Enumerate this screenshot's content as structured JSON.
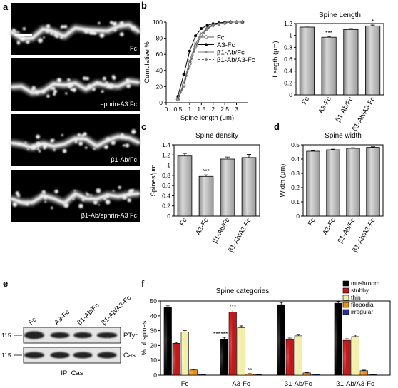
{
  "panel_labels": {
    "a": "a",
    "b": "b",
    "c": "c",
    "d": "d",
    "e": "e",
    "f": "f"
  },
  "micrographs": [
    "Fc",
    "ephrin-A3 Fc",
    "β1-Ab/Fc",
    "β1-Ab/ephrin-A3 Fc"
  ],
  "blot": {
    "lanes": [
      "Fc",
      "A3-Fc",
      "β1-Ab/Fc",
      "β1-Ab/A3-Fc"
    ],
    "rows": [
      "PTyr",
      "Cas"
    ],
    "marker": "115",
    "ip_label": "IP: Cas"
  },
  "chart_data": [
    {
      "id": "cumulative",
      "type": "line",
      "xlabel": "Spine length (μm)",
      "ylabel": "Cumulative %",
      "xlim": [
        0,
        3.5
      ],
      "ylim": [
        0,
        100
      ],
      "xticks": [
        0,
        0.5,
        1,
        1.5,
        2,
        2.5,
        3
      ],
      "yticks": [
        0,
        20,
        40,
        60,
        80,
        100
      ],
      "legend": "top-right",
      "series": [
        {
          "name": "Fc",
          "marker": "open-diamond",
          "x": [
            0.5,
            0.75,
            1,
            1.25,
            1.5,
            1.75,
            2,
            2.25,
            2.5,
            2.75,
            3,
            3.25
          ],
          "y": [
            4,
            22,
            48,
            70,
            84,
            92,
            96,
            98,
            99,
            100,
            100,
            100
          ]
        },
        {
          "name": "A3-Fc",
          "marker": "filled-circle",
          "x": [
            0.5,
            0.75,
            1,
            1.25,
            1.5,
            1.75,
            2,
            2.25,
            2.5,
            2.75,
            3,
            3.25
          ],
          "y": [
            8,
            35,
            64,
            83,
            92,
            96,
            98,
            99,
            100,
            100,
            100,
            100
          ]
        },
        {
          "name": "β1-Ab/Fc",
          "marker": "x",
          "x": [
            0.5,
            0.75,
            1,
            1.25,
            1.5,
            1.75,
            2,
            2.25,
            2.5,
            2.75,
            3,
            3.25
          ],
          "y": [
            5,
            25,
            52,
            73,
            86,
            93,
            97,
            98,
            99,
            100,
            100,
            100
          ]
        },
        {
          "name": "β1-Ab/A3-Fc",
          "marker": "dashed-star",
          "x": [
            0.5,
            0.75,
            1,
            1.25,
            1.5,
            1.75,
            2,
            2.25,
            2.5,
            2.75,
            3,
            3.25
          ],
          "y": [
            3,
            20,
            45,
            68,
            82,
            91,
            96,
            98,
            99,
            100,
            100,
            100
          ]
        }
      ]
    },
    {
      "id": "length",
      "type": "bar",
      "title": "Spine Length",
      "ylabel": "Length (μm)",
      "ylim": [
        0,
        1.2
      ],
      "yticks": [
        0,
        0.2,
        0.4,
        0.6,
        0.8,
        1,
        1.2
      ],
      "categories": [
        "Fc",
        "A3-Fc",
        "β1-Ab/Fc",
        "β1-Ab/A3-Fc"
      ],
      "values": [
        1.14,
        0.97,
        1.1,
        1.16
      ],
      "errors": [
        0.015,
        0.015,
        0.015,
        0.015
      ],
      "annotations": [
        "",
        "***",
        "",
        "*"
      ]
    },
    {
      "id": "density",
      "type": "bar",
      "title": "Spine density",
      "ylabel": "Spines/μm",
      "ylim": [
        0,
        1.4
      ],
      "yticks": [
        0,
        0.2,
        0.4,
        0.6,
        0.8,
        1,
        1.2,
        1.4
      ],
      "categories": [
        "Fc",
        "A3-Fc",
        "β1-Ab/Fc",
        "β1-Ab/A3-Fc"
      ],
      "values": [
        1.18,
        0.78,
        1.12,
        1.15
      ],
      "errors": [
        0.05,
        0.03,
        0.04,
        0.06
      ],
      "annotations": [
        "",
        "***",
        "",
        ""
      ]
    },
    {
      "id": "width",
      "type": "bar",
      "title": "Spine width",
      "ylabel": "Width (μm)",
      "ylim": [
        0,
        0.5
      ],
      "yticks": [
        0,
        0.1,
        0.2,
        0.3,
        0.4,
        0.5
      ],
      "categories": [
        "Fc",
        "A3-Fc",
        "β1-Ab/Fc",
        "β1-Ab/A3-Fc"
      ],
      "values": [
        0.455,
        0.465,
        0.475,
        0.482
      ],
      "errors": [
        0.004,
        0.004,
        0.004,
        0.004
      ],
      "annotations": [
        "",
        "",
        "",
        ""
      ]
    },
    {
      "id": "categories",
      "type": "bar",
      "title": "Spine categories",
      "ylabel": "% of spines",
      "ylim": [
        0,
        50
      ],
      "yticks": [
        0,
        10,
        20,
        30,
        40,
        50
      ],
      "categories": [
        "Fc",
        "A3-Fc",
        "β1-Ab/Fc",
        "β1-Ab/A3-Fc"
      ],
      "legend": "top-right",
      "series": [
        {
          "name": "mushroom",
          "color": "#000000",
          "values": [
            45.5,
            24,
            47.5,
            48.5
          ],
          "errors": [
            1.2,
            1.5,
            1.5,
            1.2
          ],
          "annotations": [
            "",
            "***",
            "",
            ""
          ]
        },
        {
          "name": "stubby",
          "color": "#c41818",
          "values": [
            21.5,
            42.5,
            24,
            23.5
          ],
          "errors": [
            0.6,
            1.5,
            1,
            1
          ],
          "annotations": [
            "",
            "***",
            "",
            ""
          ]
        },
        {
          "name": "thin",
          "color": "#f2efaa",
          "values": [
            29,
            32,
            26.5,
            26
          ],
          "errors": [
            1,
            1.2,
            1,
            1
          ],
          "annotations": [
            "",
            "",
            "",
            ""
          ]
        },
        {
          "name": "filopodia",
          "color": "#e8901c",
          "values": [
            3.5,
            0.8,
            1.5,
            3
          ],
          "errors": [
            0.4,
            0.2,
            0.3,
            0.4
          ],
          "annotations": [
            "",
            "**",
            "",
            ""
          ]
        },
        {
          "name": "irregular",
          "color": "#24349c",
          "values": [
            0.4,
            0.3,
            0.4,
            0.4
          ],
          "errors": [
            0.1,
            0.1,
            0.1,
            0.1
          ],
          "annotations": [
            "",
            "",
            "",
            ""
          ]
        }
      ],
      "extra_annotations": {
        "fc_mushroom_left": "***"
      }
    }
  ]
}
